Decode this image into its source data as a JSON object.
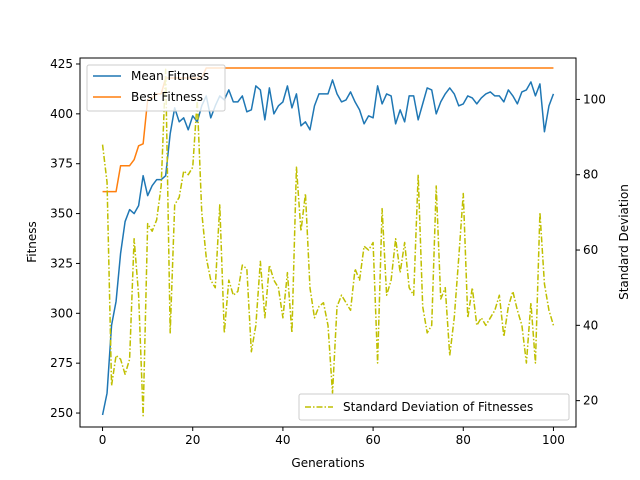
{
  "chart_data": {
    "type": "line",
    "title": "",
    "xlabel": "Generations",
    "ylabel": "Fitness",
    "y2label": "Standard Deviation",
    "xlim": [
      -5,
      105
    ],
    "ylim": [
      243,
      428
    ],
    "y2lim": [
      13,
      111
    ],
    "xticks": [
      0,
      20,
      40,
      60,
      80,
      100
    ],
    "yticks": [
      250,
      275,
      300,
      325,
      350,
      375,
      400,
      425
    ],
    "y2ticks": [
      20,
      40,
      60,
      80,
      100
    ],
    "grid": false,
    "legend_left": "upper left",
    "legend_right": "lower right",
    "series": [
      {
        "name": "Mean Fitness",
        "axis": "left",
        "color": "#1f77b4",
        "dash": "solid",
        "x": [
          0,
          1,
          2,
          3,
          4,
          5,
          6,
          7,
          8,
          9,
          10,
          11,
          12,
          13,
          14,
          15,
          16,
          17,
          18,
          19,
          20,
          21,
          22,
          23,
          24,
          25,
          26,
          27,
          28,
          29,
          30,
          31,
          32,
          33,
          34,
          35,
          36,
          37,
          38,
          39,
          40,
          41,
          42,
          43,
          44,
          45,
          46,
          47,
          48,
          49,
          50,
          51,
          52,
          53,
          54,
          55,
          56,
          57,
          58,
          59,
          60,
          61,
          62,
          63,
          64,
          65,
          66,
          67,
          68,
          69,
          70,
          71,
          72,
          73,
          74,
          75,
          76,
          77,
          78,
          79,
          80,
          81,
          82,
          83,
          84,
          85,
          86,
          87,
          88,
          89,
          90,
          91,
          92,
          93,
          94,
          95,
          96,
          97,
          98,
          99,
          100
        ],
        "y": [
          249,
          260,
          294,
          306,
          330,
          346,
          352,
          350,
          354,
          369,
          359,
          364,
          367,
          367,
          369,
          390,
          403,
          396,
          398,
          392,
          399,
          396,
          404,
          409,
          398,
          404,
          409,
          407,
          412,
          406,
          406,
          409,
          401,
          402,
          414,
          412,
          397,
          413,
          400,
          404,
          406,
          414,
          403,
          410,
          394,
          396,
          392,
          404,
          410,
          410,
          410,
          417,
          410,
          406,
          407,
          411,
          406,
          402,
          395,
          399,
          398,
          414,
          405,
          410,
          409,
          395,
          402,
          396,
          409,
          409,
          397,
          405,
          413,
          412,
          400,
          406,
          410,
          413,
          410,
          404,
          405,
          409,
          408,
          405,
          408,
          410,
          411,
          409,
          409,
          406,
          412,
          409,
          405,
          411,
          412,
          416,
          409,
          415,
          391,
          404,
          410
        ]
      },
      {
        "name": "Best Fitness",
        "axis": "left",
        "color": "#ff7f0e",
        "dash": "solid",
        "x": [
          0,
          1,
          2,
          3,
          4,
          5,
          6,
          7,
          8,
          9,
          10,
          11,
          12,
          13,
          14,
          15,
          16,
          17,
          18,
          19,
          20,
          21,
          22,
          23,
          24,
          25,
          26,
          27,
          28,
          29,
          30,
          31,
          32,
          33,
          34,
          35,
          36,
          37,
          38,
          39,
          40,
          41,
          42,
          43,
          44,
          45,
          46,
          47,
          48,
          49,
          50,
          51,
          52,
          53,
          54,
          55,
          56,
          57,
          58,
          59,
          60,
          61,
          62,
          63,
          64,
          65,
          66,
          67,
          68,
          69,
          70,
          71,
          72,
          73,
          74,
          75,
          76,
          77,
          78,
          79,
          80,
          81,
          82,
          83,
          84,
          85,
          86,
          87,
          88,
          89,
          90,
          91,
          92,
          93,
          94,
          95,
          96,
          97,
          98,
          99,
          100
        ],
        "y": [
          361,
          361,
          361,
          361,
          374,
          374,
          374,
          377,
          384,
          385,
          407,
          408,
          410,
          410,
          418,
          418,
          418,
          418,
          418,
          418,
          418,
          418,
          418,
          423,
          423,
          423,
          423,
          423,
          423,
          423,
          423,
          423,
          423,
          423,
          423,
          423,
          423,
          423,
          423,
          423,
          423,
          423,
          423,
          423,
          423,
          423,
          423,
          423,
          423,
          423,
          423,
          423,
          423,
          423,
          423,
          423,
          423,
          423,
          423,
          423,
          423,
          423,
          423,
          423,
          423,
          423,
          423,
          423,
          423,
          423,
          423,
          423,
          423,
          423,
          423,
          423,
          423,
          423,
          423,
          423,
          423,
          423,
          423,
          423,
          423,
          423,
          423,
          423,
          423,
          423,
          423,
          423,
          423,
          423,
          423,
          423,
          423,
          423,
          423,
          423,
          423
        ]
      },
      {
        "name": "Standard Deviation of Fitnesses",
        "axis": "right",
        "color": "#bfbf00",
        "dash": "dashdot",
        "x": [
          0,
          1,
          2,
          3,
          4,
          5,
          6,
          7,
          8,
          9,
          10,
          11,
          12,
          13,
          14,
          15,
          16,
          17,
          18,
          19,
          20,
          21,
          22,
          23,
          24,
          25,
          26,
          27,
          28,
          29,
          30,
          31,
          32,
          33,
          34,
          35,
          36,
          37,
          38,
          39,
          40,
          41,
          42,
          43,
          44,
          45,
          46,
          47,
          48,
          49,
          50,
          51,
          52,
          53,
          54,
          55,
          56,
          57,
          58,
          59,
          60,
          61,
          62,
          63,
          64,
          65,
          66,
          67,
          68,
          69,
          70,
          71,
          72,
          73,
          74,
          75,
          76,
          77,
          78,
          79,
          80,
          81,
          82,
          83,
          84,
          85,
          86,
          87,
          88,
          89,
          90,
          91,
          92,
          93,
          94,
          95,
          96,
          97,
          98,
          99,
          100
        ],
        "y": [
          88,
          78,
          24,
          32,
          31,
          27,
          31,
          63,
          48,
          16,
          67,
          65,
          68,
          77,
          108,
          38,
          72,
          74,
          81,
          80,
          82,
          100,
          70,
          58,
          52,
          50,
          72,
          38,
          52,
          48,
          49,
          56,
          55,
          33,
          40,
          57,
          42,
          56,
          52,
          50,
          42,
          54,
          38,
          82,
          65,
          75,
          50,
          42,
          45,
          46,
          40,
          22,
          45,
          48,
          46,
          44,
          55,
          52,
          61,
          60,
          62,
          30,
          71,
          48,
          52,
          63,
          54,
          62,
          50,
          48,
          80,
          45,
          38,
          40,
          77,
          47,
          50,
          32,
          42,
          58,
          75,
          42,
          50,
          40,
          42,
          40,
          42,
          44,
          48,
          37,
          45,
          49,
          44,
          40,
          30,
          46,
          30,
          70,
          51,
          44,
          40
        ]
      }
    ]
  }
}
